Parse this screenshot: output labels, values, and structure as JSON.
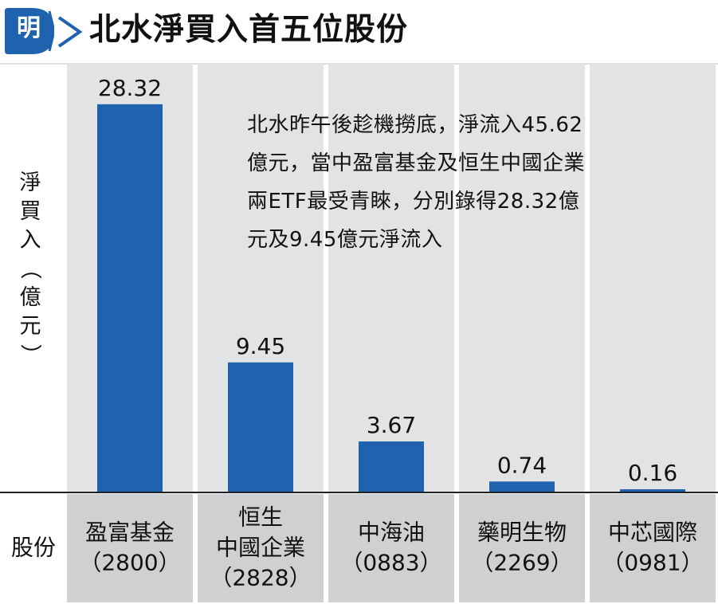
{
  "header": {
    "badge": "明",
    "title": "北水淨買入首五位股份"
  },
  "annotation": {
    "lines": [
      "北水昨午後趁機撈底，淨流入45.62",
      "億元，當中盈富基金及恒生中國企業",
      "兩ETF最受青睞，分別錄得28.32億",
      "元及9.45億元淨流入"
    ]
  },
  "colors": {
    "bar": "#1f62ad",
    "column_band": "#e2e3e4",
    "category_band": "#cfd0d1",
    "badge": "#1f62ad"
  },
  "chart_data": {
    "type": "bar",
    "ylabel": "淨買入（億元）",
    "xlabel": "股份",
    "categories": [
      [
        "盈富基金",
        "（2800）"
      ],
      [
        "恒生",
        "中國企業",
        "（2828）"
      ],
      [
        "中海油",
        "（0883）"
      ],
      [
        "藥明生物",
        "（2269）"
      ],
      [
        "中芯國際",
        "（0981）"
      ]
    ],
    "values": [
      28.32,
      9.45,
      3.67,
      0.74,
      0.16
    ],
    "value_labels": [
      "28.32",
      "9.45",
      "3.67",
      "0.74",
      "0.16"
    ],
    "ylim": [
      0,
      30
    ],
    "grid": false
  }
}
